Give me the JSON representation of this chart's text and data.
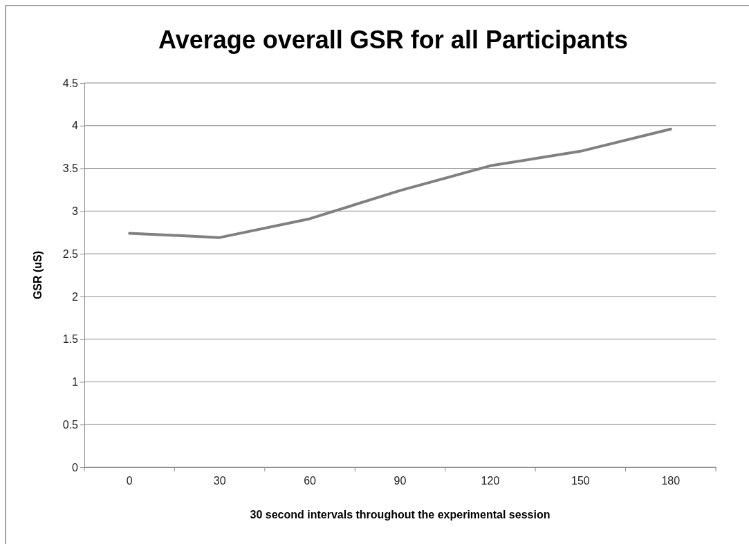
{
  "chart_data": {
    "type": "line",
    "title": "Average overall GSR for all Participants",
    "xlabel": "30 second intervals throughout the experimental session",
    "ylabel": "GSR (uS)",
    "categories": [
      "0",
      "30",
      "60",
      "90",
      "120",
      "150",
      "180"
    ],
    "series": [
      {
        "color": "#808080",
        "values": [
          2.74,
          2.69,
          2.91,
          3.24,
          3.53,
          3.7,
          3.96
        ]
      }
    ],
    "ylim": [
      0,
      4.5
    ],
    "yticks": [
      0,
      0.5,
      1,
      1.5,
      2,
      2.5,
      3,
      3.5,
      4,
      4.5
    ],
    "grid": "y",
    "marker": "none",
    "line_style": "solid"
  }
}
